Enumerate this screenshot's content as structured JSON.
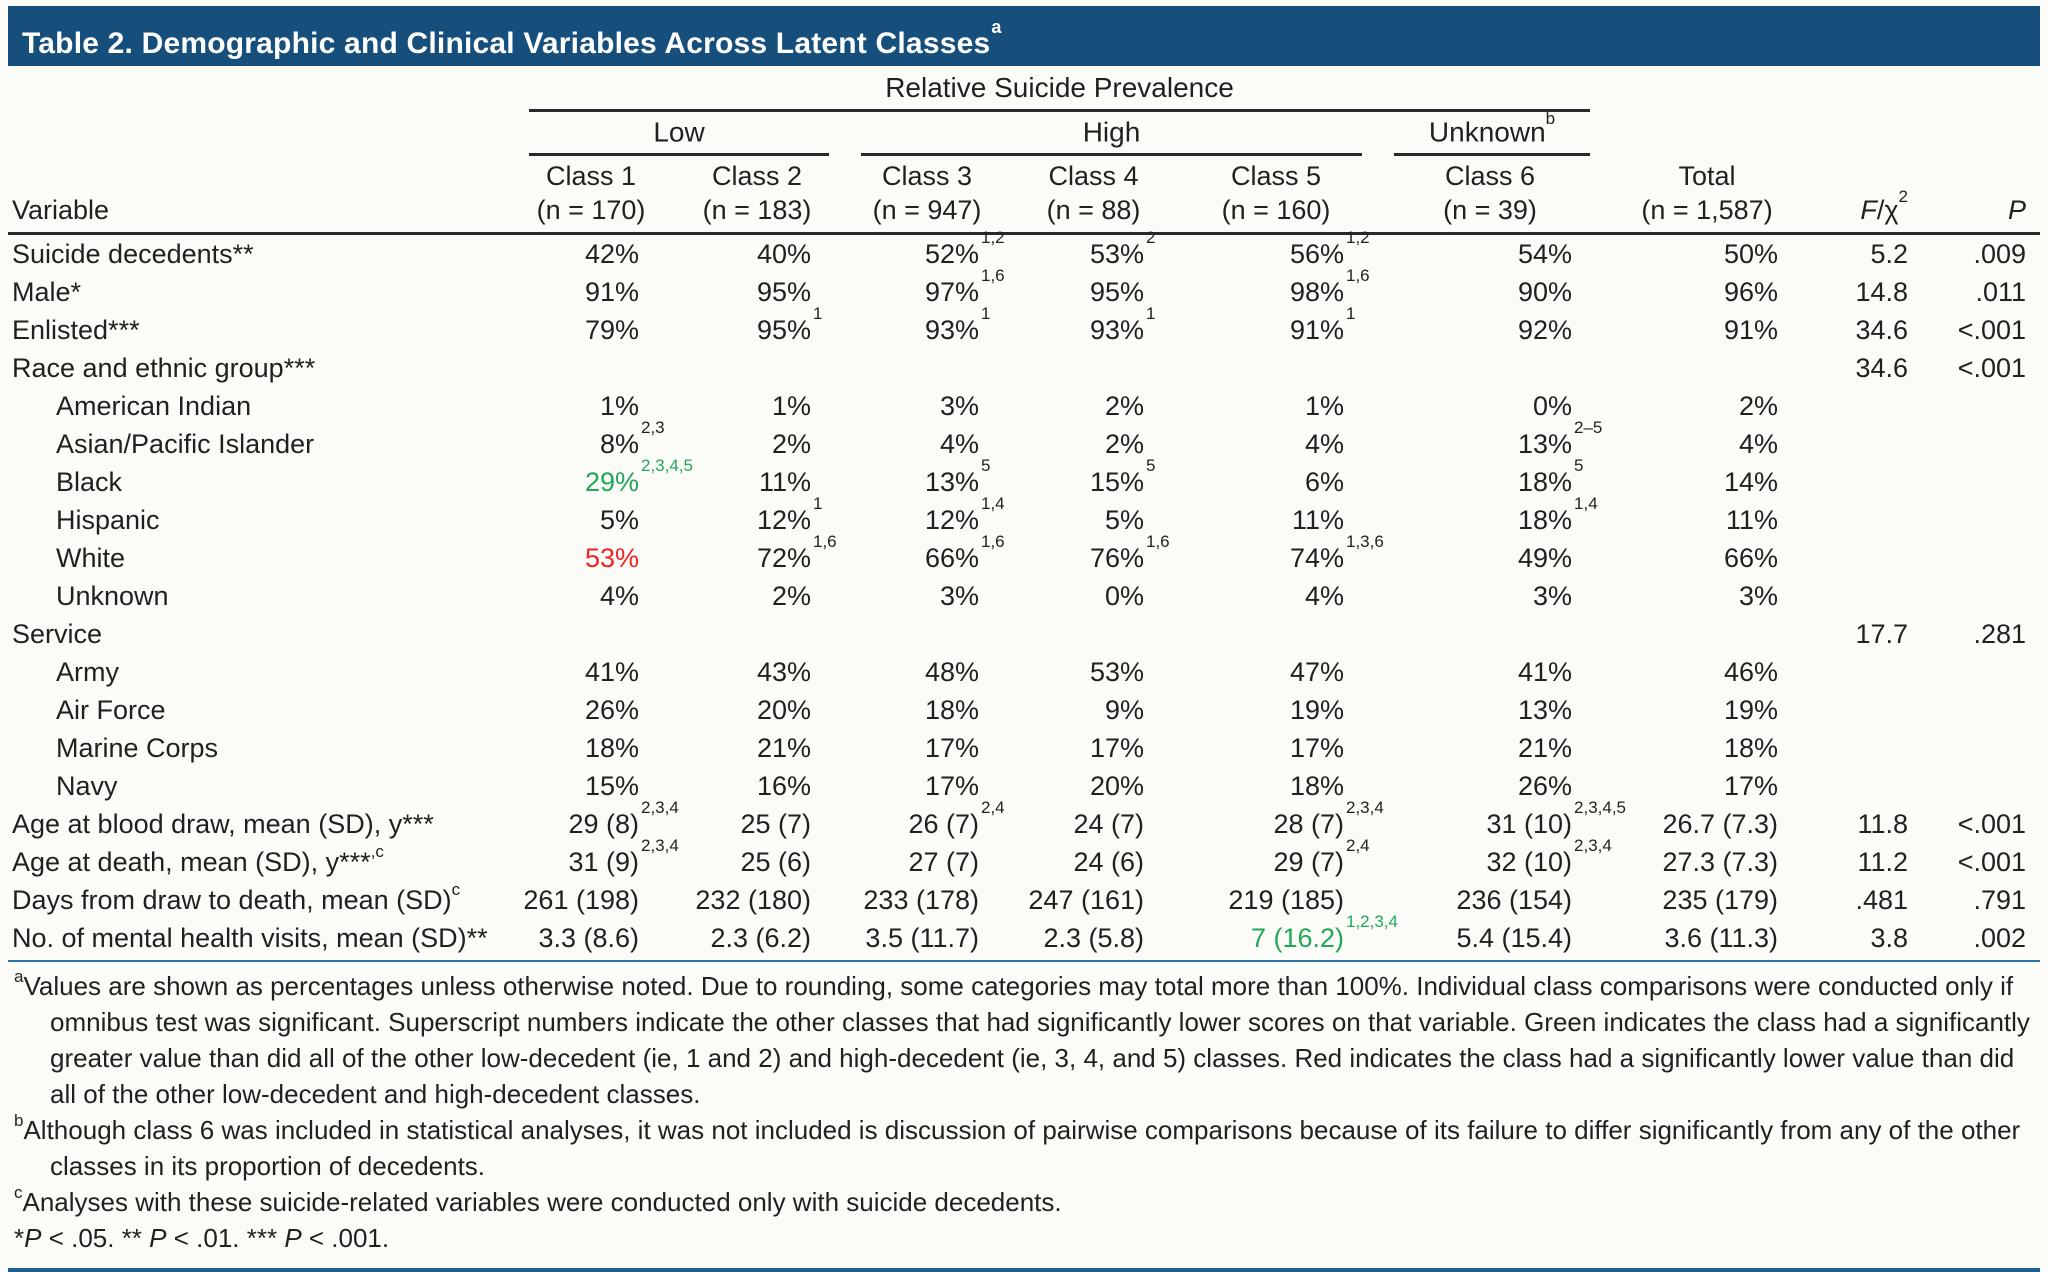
{
  "title": "Table 2. Demographic and Clinical Variables Across Latent Classes",
  "title_sup": "a",
  "header": {
    "prevalence_label": "Relative Suicide Prevalence",
    "groups": [
      {
        "label": "Low",
        "sup": ""
      },
      {
        "label": "High",
        "sup": ""
      },
      {
        "label": "Unknown",
        "sup": "b"
      }
    ],
    "variable_label": "Variable",
    "columns": [
      {
        "name": "Class 1",
        "n": "(n = 170)"
      },
      {
        "name": "Class 2",
        "n": "(n = 183)"
      },
      {
        "name": "Class 3",
        "n": "(n = 947)"
      },
      {
        "name": "Class 4",
        "n": "(n = 88)"
      },
      {
        "name": "Class 5",
        "n": "(n = 160)"
      },
      {
        "name": "Class 6",
        "n": "(n = 39)"
      },
      {
        "name": "Total",
        "n": "(n = 1,587)"
      }
    ],
    "stat_columns": [
      {
        "tokens": [
          {
            "i": "F"
          },
          {
            "t": "/χ"
          },
          {
            "s": "2"
          }
        ]
      },
      {
        "tokens": [
          {
            "i": "P"
          }
        ]
      }
    ]
  },
  "rows": [
    {
      "label": "Suicide decedents**",
      "cells": [
        {
          "v": "42%"
        },
        {
          "v": "40%"
        },
        {
          "v": "52%",
          "sup": "1,2"
        },
        {
          "v": "53%",
          "sup": "2"
        },
        {
          "v": "56%",
          "sup": "1,2"
        },
        {
          "v": "54%"
        },
        {
          "v": "50%"
        }
      ],
      "f": "5.2",
      "p": ".009"
    },
    {
      "label": "Male*",
      "cells": [
        {
          "v": "91%"
        },
        {
          "v": "95%"
        },
        {
          "v": "97%",
          "sup": "1,6"
        },
        {
          "v": "95%"
        },
        {
          "v": "98%",
          "sup": "1,6"
        },
        {
          "v": "90%"
        },
        {
          "v": "96%"
        }
      ],
      "f": "14.8",
      "p": ".011"
    },
    {
      "label": "Enlisted***",
      "cells": [
        {
          "v": "79%"
        },
        {
          "v": "95%",
          "sup": "1"
        },
        {
          "v": "93%",
          "sup": "1"
        },
        {
          "v": "93%",
          "sup": "1"
        },
        {
          "v": "91%",
          "sup": "1"
        },
        {
          "v": "92%"
        },
        {
          "v": "91%"
        }
      ],
      "f": "34.6",
      "p": "<.001"
    },
    {
      "label": "Race and ethnic group***",
      "cells": [
        null,
        null,
        null,
        null,
        null,
        null,
        null
      ],
      "f": "34.6",
      "p": "<.001"
    },
    {
      "label": "American Indian",
      "indent": true,
      "cells": [
        {
          "v": "1%"
        },
        {
          "v": "1%"
        },
        {
          "v": "3%"
        },
        {
          "v": "2%"
        },
        {
          "v": "1%"
        },
        {
          "v": "0%"
        },
        {
          "v": "2%"
        }
      ],
      "f": "",
      "p": ""
    },
    {
      "label": "Asian/Pacific Islander",
      "indent": true,
      "cells": [
        {
          "v": "8%",
          "sup": "2,3"
        },
        {
          "v": "2%"
        },
        {
          "v": "4%"
        },
        {
          "v": "2%"
        },
        {
          "v": "4%"
        },
        {
          "v": "13%",
          "sup": "2–5"
        },
        {
          "v": "4%"
        }
      ],
      "f": "",
      "p": ""
    },
    {
      "label": "Black",
      "indent": true,
      "cells": [
        {
          "v": "29%",
          "sup": "2,3,4,5",
          "color": "green"
        },
        {
          "v": "11%"
        },
        {
          "v": "13%",
          "sup": "5"
        },
        {
          "v": "15%",
          "sup": "5"
        },
        {
          "v": "6%"
        },
        {
          "v": "18%",
          "sup": "5"
        },
        {
          "v": "14%"
        }
      ],
      "f": "",
      "p": ""
    },
    {
      "label": "Hispanic",
      "indent": true,
      "cells": [
        {
          "v": "5%"
        },
        {
          "v": "12%",
          "sup": "1"
        },
        {
          "v": "12%",
          "sup": "1,4"
        },
        {
          "v": "5%"
        },
        {
          "v": "11%"
        },
        {
          "v": "18%",
          "sup": "1,4"
        },
        {
          "v": "11%"
        }
      ],
      "f": "",
      "p": ""
    },
    {
      "label": "White",
      "indent": true,
      "cells": [
        {
          "v": "53%",
          "color": "red"
        },
        {
          "v": "72%",
          "sup": "1,6"
        },
        {
          "v": "66%",
          "sup": "1,6"
        },
        {
          "v": "76%",
          "sup": "1,6"
        },
        {
          "v": "74%",
          "sup": "1,3,6"
        },
        {
          "v": "49%"
        },
        {
          "v": "66%"
        }
      ],
      "f": "",
      "p": ""
    },
    {
      "label": "Unknown",
      "indent": true,
      "cells": [
        {
          "v": "4%"
        },
        {
          "v": "2%"
        },
        {
          "v": "3%"
        },
        {
          "v": "0%"
        },
        {
          "v": "4%"
        },
        {
          "v": "3%"
        },
        {
          "v": "3%"
        }
      ],
      "f": "",
      "p": ""
    },
    {
      "label": "Service",
      "cells": [
        null,
        null,
        null,
        null,
        null,
        null,
        null
      ],
      "f": "17.7",
      "p": ".281"
    },
    {
      "label": "Army",
      "indent": true,
      "cells": [
        {
          "v": "41%"
        },
        {
          "v": "43%"
        },
        {
          "v": "48%"
        },
        {
          "v": "53%"
        },
        {
          "v": "47%"
        },
        {
          "v": "41%"
        },
        {
          "v": "46%"
        }
      ],
      "f": "",
      "p": ""
    },
    {
      "label": "Air Force",
      "indent": true,
      "cells": [
        {
          "v": "26%"
        },
        {
          "v": "20%"
        },
        {
          "v": "18%"
        },
        {
          "v": "9%"
        },
        {
          "v": "19%"
        },
        {
          "v": "13%"
        },
        {
          "v": "19%"
        }
      ],
      "f": "",
      "p": ""
    },
    {
      "label": "Marine Corps",
      "indent": true,
      "cells": [
        {
          "v": "18%"
        },
        {
          "v": "21%"
        },
        {
          "v": "17%"
        },
        {
          "v": "17%"
        },
        {
          "v": "17%"
        },
        {
          "v": "21%"
        },
        {
          "v": "18%"
        }
      ],
      "f": "",
      "p": ""
    },
    {
      "label": "Navy",
      "indent": true,
      "cells": [
        {
          "v": "15%"
        },
        {
          "v": "16%"
        },
        {
          "v": "17%"
        },
        {
          "v": "20%"
        },
        {
          "v": "18%"
        },
        {
          "v": "26%"
        },
        {
          "v": "17%"
        }
      ],
      "f": "",
      "p": ""
    },
    {
      "label": "Age at blood draw, mean (SD), y***",
      "cells": [
        {
          "v": "29 (8)",
          "sup": "2,3,4"
        },
        {
          "v": "25 (7)"
        },
        {
          "v": "26 (7)",
          "sup": "2,4"
        },
        {
          "v": "24 (7)"
        },
        {
          "v": "28 (7)",
          "sup": "2,3,4"
        },
        {
          "v": "31 (10)",
          "sup": "2,3,4,5"
        },
        {
          "v": "26.7 (7.3)"
        }
      ],
      "f": "11.8",
      "p": "<.001"
    },
    {
      "label": "Age at death, mean (SD), y***",
      "sup": ",c",
      "cells": [
        {
          "v": "31 (9)",
          "sup": "2,3,4"
        },
        {
          "v": "25 (6)"
        },
        {
          "v": "27 (7)"
        },
        {
          "v": "24 (6)"
        },
        {
          "v": "29 (7)",
          "sup": "2,4"
        },
        {
          "v": "32 (10)",
          "sup": "2,3,4"
        },
        {
          "v": "27.3 (7.3)"
        }
      ],
      "f": "11.2",
      "p": "<.001"
    },
    {
      "label": "Days from draw to death, mean (SD)",
      "sup": "c",
      "cells": [
        {
          "v": "261 (198)"
        },
        {
          "v": "232 (180)"
        },
        {
          "v": "233 (178)"
        },
        {
          "v": "247 (161)"
        },
        {
          "v": "219 (185)"
        },
        {
          "v": "236 (154)"
        },
        {
          "v": "235 (179)"
        }
      ],
      "f": ".481",
      "p": ".791"
    },
    {
      "label": "No. of mental health visits, mean (SD)**",
      "cells": [
        {
          "v": "3.3 (8.6)"
        },
        {
          "v": "2.3 (6.2)"
        },
        {
          "v": "3.5 (11.7)"
        },
        {
          "v": "2.3 (5.8)"
        },
        {
          "v": "7 (16.2)",
          "sup": "1,2,3,4",
          "color": "green"
        },
        {
          "v": "5.4 (15.4)"
        },
        {
          "v": "3.6 (11.3)"
        }
      ],
      "f": "3.8",
      "p": ".002"
    }
  ],
  "footnotes": [
    {
      "marker": "a",
      "text": "Values are shown as percentages unless otherwise noted. Due to rounding, some categories may total more than 100%. Individual class comparisons were conducted only if omnibus test was significant. Superscript numbers indicate the other classes that had significantly lower scores on that variable. Green indicates the class had a significantly greater value than did all of the other low-decedent (ie, 1 and 2) and high-decedent (ie, 3, 4, and 5) classes. Red indicates the class had a significantly lower value than did all of the other low-decedent and high-decedent classes."
    },
    {
      "marker": "b",
      "text": "Although class 6 was included in statistical analyses, it was not included is discussion of pairwise comparisons because of its failure to differ significantly from any of the other classes in its proportion of decedents."
    },
    {
      "marker": "c",
      "text": "Analyses with these suicide-related variables were conducted only with suicide decedents."
    },
    {
      "marker": "",
      "tokens": [
        {
          "t": "*"
        },
        {
          "i": "P"
        },
        {
          "t": " < .05. ** "
        },
        {
          "i": "P"
        },
        {
          "t": " < .01. *** "
        },
        {
          "i": "P"
        },
        {
          "t": " < .001."
        }
      ]
    }
  ],
  "colors": {
    "title_bar": "#174f7c",
    "green_highlight": "#22a75a",
    "red_highlight": "#ee2424",
    "rule_blue_thin": "#2e75a5",
    "rule_blue_bottom": "#1e5e8d",
    "text": "#231f20"
  }
}
